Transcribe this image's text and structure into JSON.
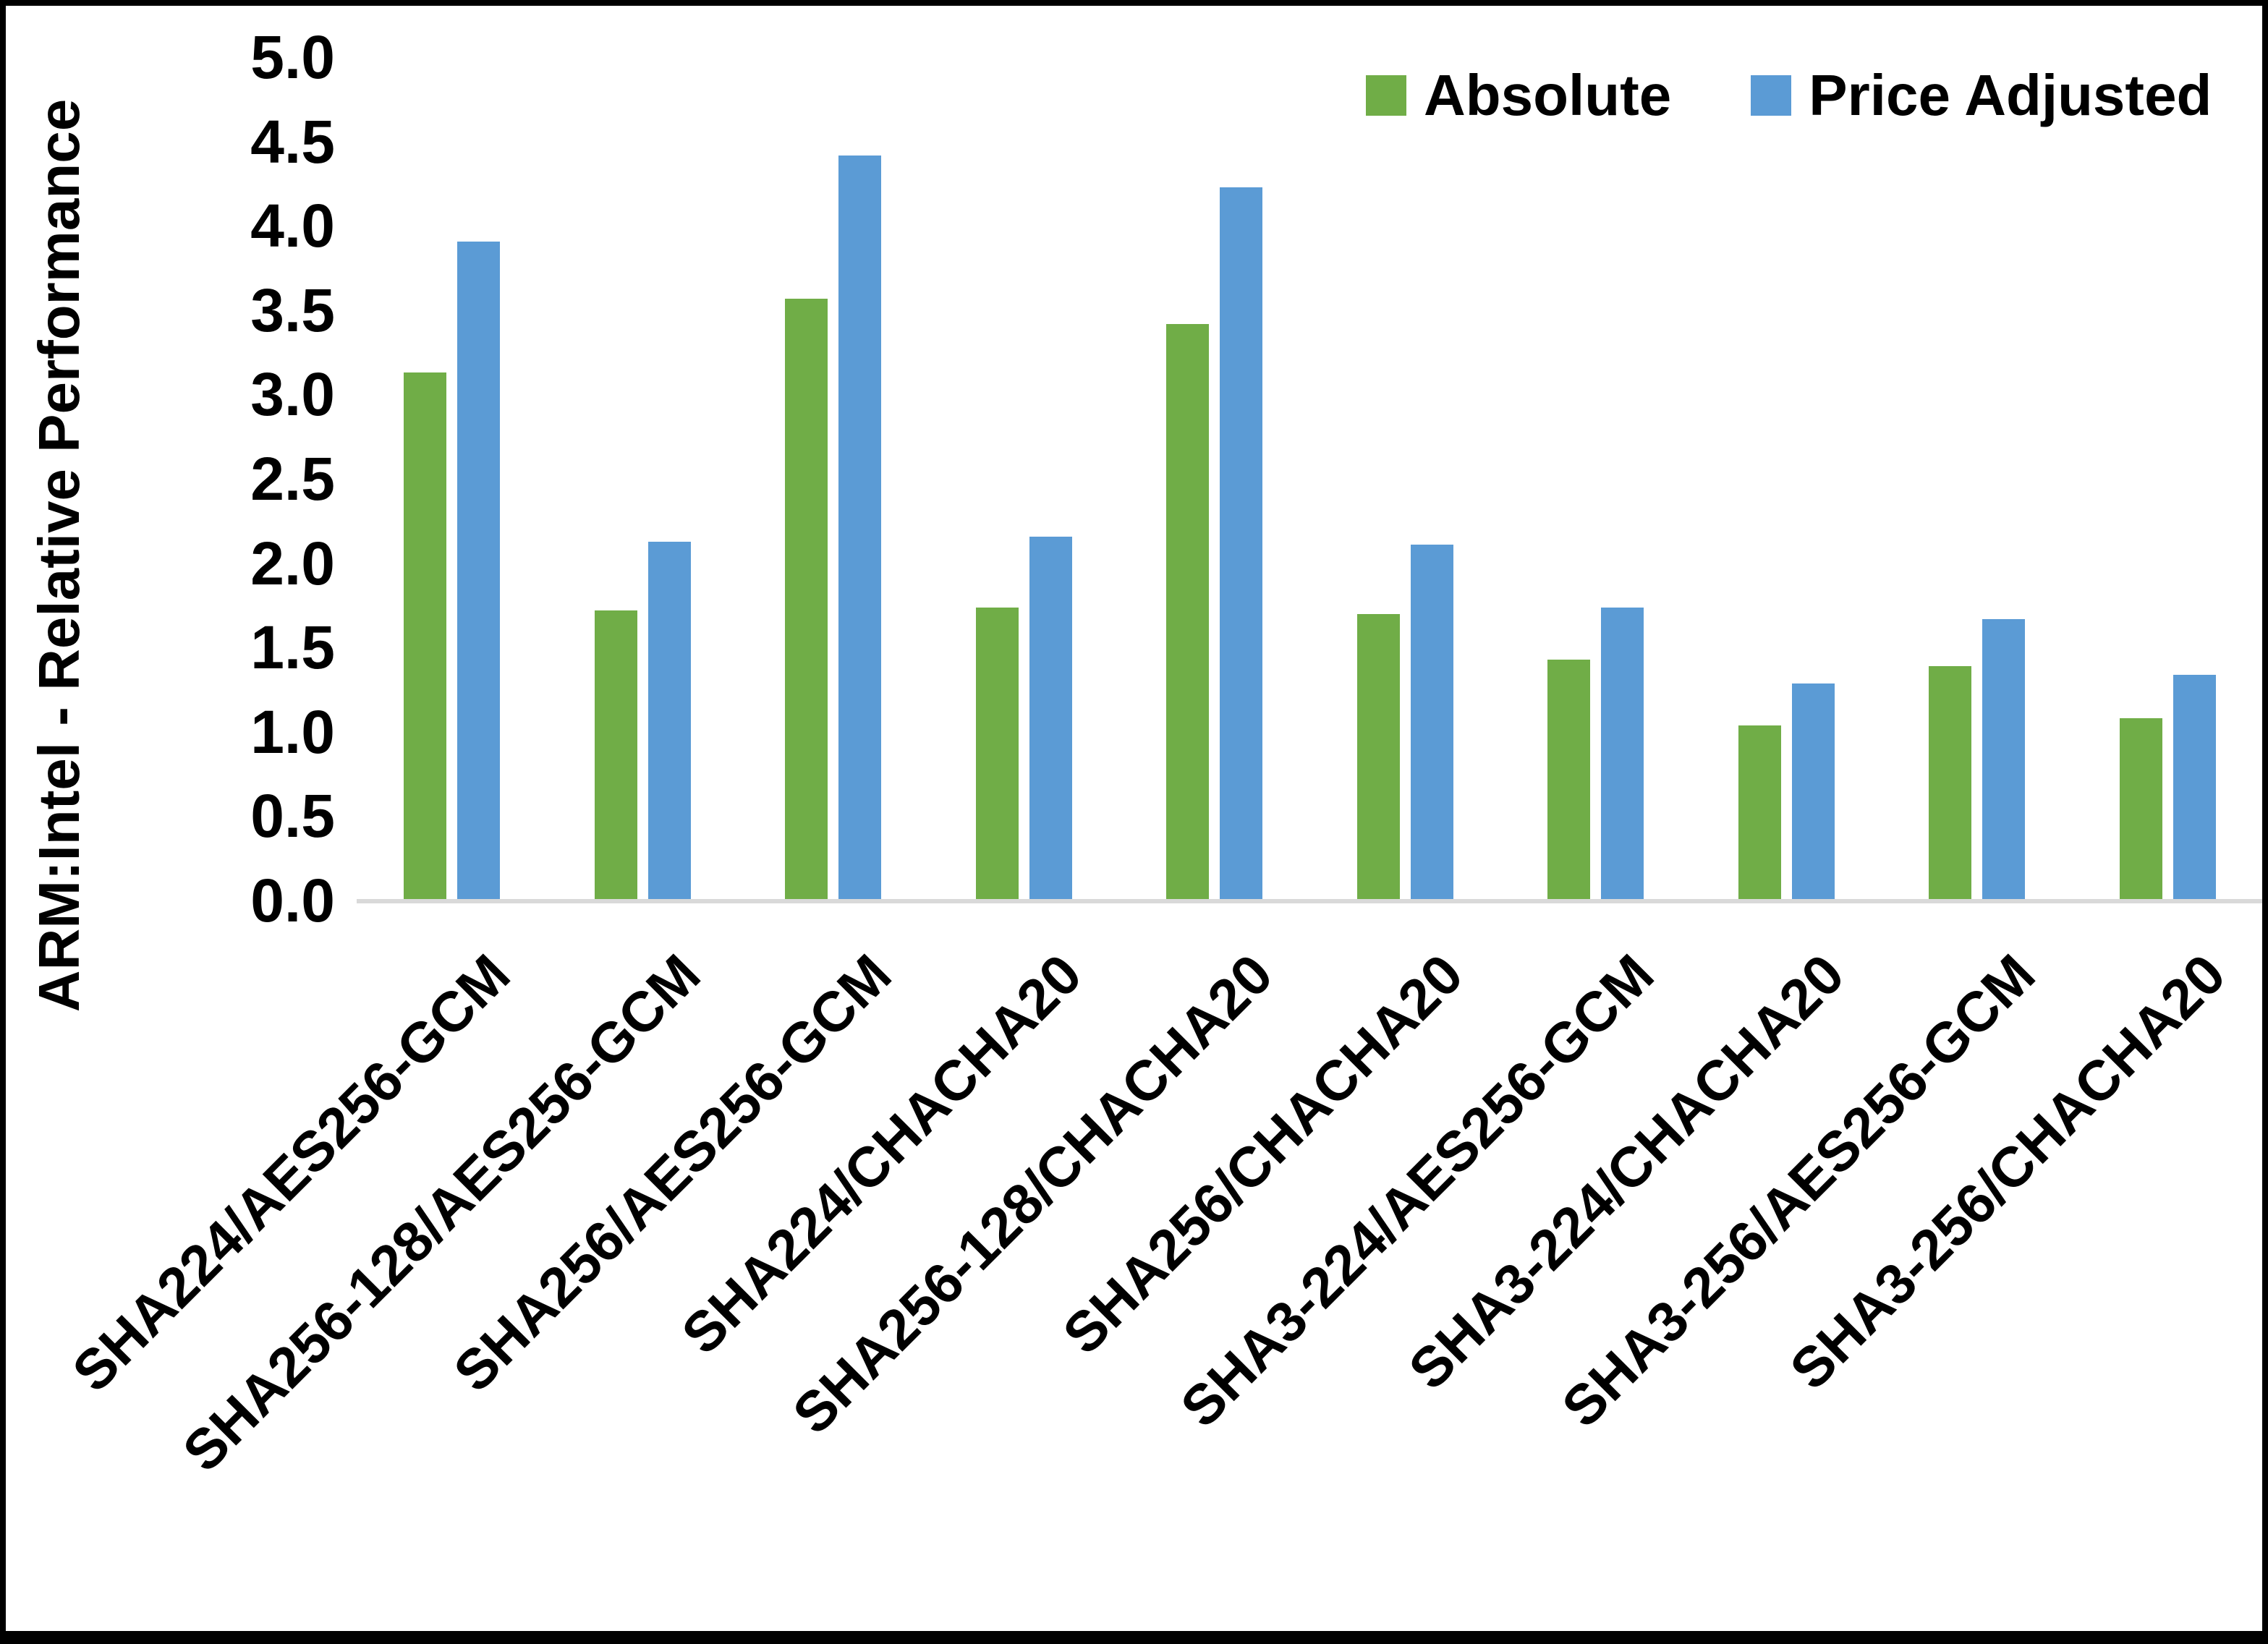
{
  "chart_data": {
    "type": "bar",
    "title": "",
    "ylabel": "ARM:Intel - Relative Performance",
    "xlabel": "",
    "ylim": [
      0.0,
      5.0
    ],
    "ytick_step": 0.5,
    "grid": false,
    "legend_position": "top-right",
    "categories": [
      "SHA224/AES256-GCM",
      "SHA256-128/AES256-GCM",
      "SHA256/AES256-GCM",
      "SHA224/CHACHA20",
      "SHA256-128/CHACHA20",
      "SHA256/CHACHA20",
      "SHA3-224/AES256-GCM",
      "SHA3-224/CHACHA20",
      "SHA3-256/AES256-GCM",
      "SHA3-256/CHACHA20"
    ],
    "series": [
      {
        "name": "Absolute",
        "color": "#70AD47",
        "values": [
          3.12,
          1.71,
          3.56,
          1.73,
          3.41,
          1.69,
          1.42,
          1.03,
          1.38,
          1.07
        ]
      },
      {
        "name": "Price Adjusted",
        "color": "#5B9BD5",
        "values": [
          3.9,
          2.12,
          4.41,
          2.15,
          4.22,
          2.1,
          1.73,
          1.28,
          1.66,
          1.33
        ]
      }
    ],
    "colors": {
      "axis_line": "#d9d9d9",
      "text": "#000000",
      "background": "#ffffff",
      "frame_border": "#000000"
    }
  }
}
